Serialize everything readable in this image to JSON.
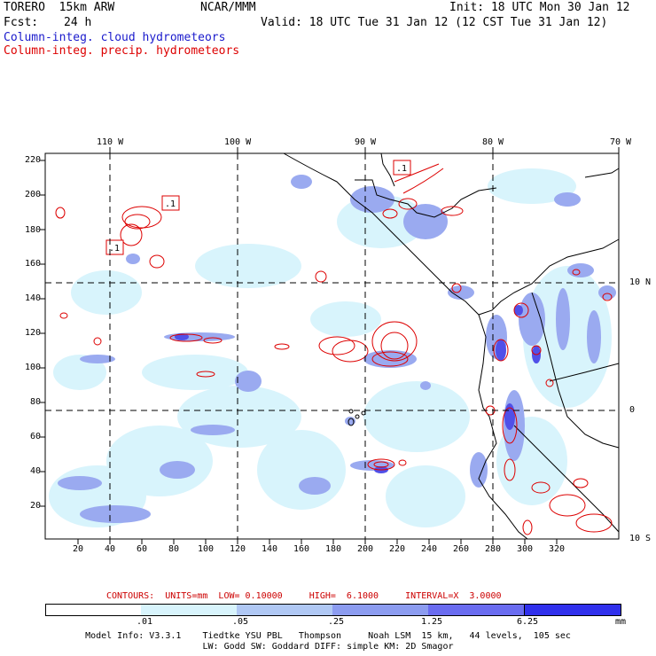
{
  "header": {
    "model": "TORERO  15km ARW",
    "center": "NCAR/MMM",
    "init": "Init: 18 UTC Mon 30 Jan 12",
    "fcst_label": "Fcst:",
    "fcst_value": "24 h",
    "valid": "Valid: 18 UTC Tue 31 Jan 12 (12 CST Tue 31 Jan 12)"
  },
  "legend": {
    "cloud": "Column-integ. cloud hydrometeors",
    "precip": "Column-integ. precip. hydrometeors",
    "cloud_color": "#1a1acc",
    "precip_color": "#dd0000"
  },
  "map": {
    "top_labels": [
      "110 W",
      "100 W",
      "90 W",
      "80 W",
      "70 W"
    ],
    "right_labels": [
      "10 N",
      "0",
      "10 S"
    ],
    "y_ticks": [
      "220",
      "200",
      "180",
      "160",
      "140",
      "120",
      "100",
      "80",
      "60",
      "40",
      "20"
    ],
    "x_ticks": [
      "20",
      "40",
      "60",
      "80",
      "100",
      "120",
      "140",
      "160",
      "180",
      "200",
      "220",
      "240",
      "260",
      "280",
      "300",
      "320"
    ],
    "contour_labels": [
      ".1",
      ".1",
      ".1"
    ]
  },
  "colorbar": {
    "ticks": [
      ".01",
      ".05",
      ".25",
      "1.25",
      "6.25"
    ],
    "unit": "mm",
    "colors": [
      "#ffffff",
      "#d8f4fc",
      "#b0c8f4",
      "#8c9cf0",
      "#6a6cf0",
      "#4040f0",
      "#2020e8"
    ]
  },
  "contour_info": "CONTOURS:  UNITS=mm  LOW= 0.10000     HIGH=  6.1000     INTERVAL=X  3.0000",
  "model_info": {
    "line1": "Model Info: V3.3.1    Tiedtke YSU PBL   Thompson     Noah LSM  15 km,   44 levels,  105 sec",
    "line2": "LW: Godd SW: Goddard DIFF: simple KM: 2D Smagor"
  }
}
